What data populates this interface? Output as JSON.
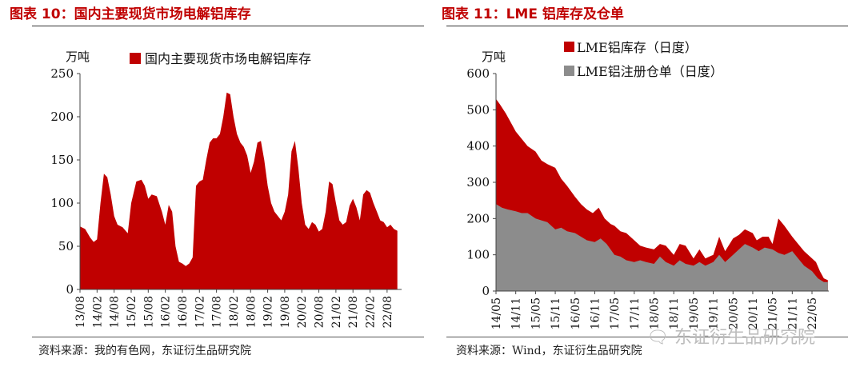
{
  "charts": {
    "left": {
      "title": "图表 10：国内主要现货市场电解铝库存",
      "source": "资料来源：我的有色网，东证衍生品研究院",
      "accent": "#c00000"
    },
    "right": {
      "title": "图表 11：LME 铝库存及仓单",
      "source": "资料来源：Wind，东证衍生品研究院",
      "accent": "#c00000",
      "secondary": "#8c8c8c"
    }
  },
  "watermark": {
    "icon": "wechat-icon",
    "text": "东证衍生品研究院"
  },
  "chart_data": [
    {
      "type": "area",
      "title": "国内主要现货市场电解铝库存",
      "ylabel": "万吨",
      "ylim": [
        0,
        250
      ],
      "yticks": [
        0,
        50,
        100,
        150,
        200,
        250
      ],
      "xtick_labels": [
        "13/08",
        "14/02",
        "14/08",
        "15/02",
        "15/08",
        "16/02",
        "16/08",
        "17/02",
        "17/08",
        "18/02",
        "18/08",
        "19/02",
        "19/08",
        "20/02",
        "20/08",
        "21/02",
        "21/08",
        "22/02",
        "22/08"
      ],
      "series": [
        {
          "name": "国内主要现货市场电解铝库存",
          "color": "#c00000",
          "x": [
            0,
            0.3,
            0.6,
            0.8,
            1.0,
            1.2,
            1.4,
            1.6,
            1.8,
            2.0,
            2.2,
            2.5,
            2.8,
            3.0,
            3.3,
            3.6,
            3.8,
            4.0,
            4.2,
            4.5,
            4.8,
            5.0,
            5.2,
            5.4,
            5.6,
            5.8,
            6.0,
            6.2,
            6.4,
            6.6,
            6.8,
            7.0,
            7.2,
            7.4,
            7.6,
            7.8,
            8.0,
            8.2,
            8.4,
            8.6,
            8.8,
            9.0,
            9.2,
            9.4,
            9.6,
            9.8,
            10.0,
            10.2,
            10.4,
            10.6,
            10.8,
            11.0,
            11.2,
            11.4,
            11.6,
            11.8,
            12.0,
            12.2,
            12.4,
            12.6,
            12.8,
            13.0,
            13.2,
            13.4,
            13.6,
            13.8,
            14.0,
            14.2,
            14.4,
            14.6,
            14.8,
            15.0,
            15.2,
            15.4,
            15.6,
            15.8,
            16.0,
            16.2,
            16.4,
            16.6,
            16.8,
            17.0,
            17.2,
            17.4,
            17.6,
            17.8,
            18.0,
            18.2,
            18.4,
            18.6
          ],
          "values": [
            73,
            70,
            60,
            55,
            58,
            100,
            134,
            130,
            110,
            85,
            75,
            72,
            65,
            100,
            125,
            127,
            120,
            105,
            110,
            108,
            90,
            75,
            98,
            90,
            50,
            32,
            30,
            27,
            30,
            37,
            120,
            125,
            127,
            150,
            170,
            175,
            175,
            180,
            200,
            228,
            226,
            200,
            180,
            170,
            165,
            155,
            135,
            148,
            170,
            172,
            150,
            120,
            100,
            90,
            85,
            80,
            90,
            110,
            160,
            172,
            140,
            100,
            75,
            70,
            78,
            75,
            67,
            70,
            90,
            125,
            122,
            100,
            80,
            75,
            78,
            97,
            105,
            95,
            80,
            110,
            115,
            112,
            100,
            90,
            80,
            78,
            72,
            75,
            70,
            68
          ]
        }
      ]
    },
    {
      "type": "area",
      "title": "LME 铝库存及仓单",
      "ylabel": "万吨",
      "ylim": [
        0,
        600
      ],
      "yticks": [
        0,
        100,
        200,
        300,
        400,
        500,
        600
      ],
      "xtick_labels": [
        "14/05",
        "14/11",
        "15/05",
        "15/11",
        "16/05",
        "16/11",
        "17/05",
        "17/11",
        "18/05",
        "18/11",
        "19/05",
        "19/11",
        "20/05",
        "20/11",
        "21/05",
        "21/11",
        "22/05"
      ],
      "series": [
        {
          "name": "LME铝库存（日度）",
          "color": "#c00000",
          "x": [
            0,
            0.2,
            0.5,
            0.8,
            1.0,
            1.3,
            1.6,
            2.0,
            2.3,
            2.6,
            3.0,
            3.3,
            3.6,
            4.0,
            4.3,
            4.6,
            4.9,
            5.2,
            5.5,
            5.8,
            6.0,
            6.3,
            6.6,
            7.0,
            7.3,
            7.6,
            8.0,
            8.3,
            8.6,
            9.0,
            9.3,
            9.6,
            10.0,
            10.3,
            10.6,
            11.0,
            11.3,
            11.6,
            12.0,
            12.3,
            12.6,
            13.0,
            13.2,
            13.5,
            13.8,
            14.0,
            14.3,
            14.6,
            15.0,
            15.3,
            15.6,
            15.9,
            16.2,
            16.4,
            16.6,
            16.8
          ],
          "values": [
            530,
            515,
            490,
            460,
            440,
            420,
            400,
            385,
            360,
            350,
            340,
            310,
            290,
            260,
            240,
            225,
            215,
            230,
            200,
            185,
            180,
            165,
            160,
            140,
            125,
            120,
            115,
            130,
            125,
            100,
            130,
            125,
            90,
            115,
            90,
            100,
            150,
            110,
            145,
            155,
            170,
            160,
            140,
            150,
            150,
            130,
            200,
            180,
            150,
            130,
            110,
            95,
            80,
            55,
            35,
            30
          ]
        },
        {
          "name": "LME铝注册仓单（日度）",
          "color": "#8c8c8c",
          "x": [
            0,
            0.3,
            0.6,
            1.0,
            1.3,
            1.6,
            2.0,
            2.3,
            2.6,
            3.0,
            3.3,
            3.6,
            4.0,
            4.3,
            4.6,
            5.0,
            5.3,
            5.6,
            6.0,
            6.3,
            6.6,
            7.0,
            7.3,
            7.6,
            8.0,
            8.3,
            8.6,
            9.0,
            9.3,
            9.6,
            10.0,
            10.3,
            10.6,
            11.0,
            11.3,
            11.6,
            12.0,
            12.3,
            12.6,
            13.0,
            13.3,
            13.6,
            14.0,
            14.3,
            14.6,
            15.0,
            15.3,
            15.6,
            16.0,
            16.3,
            16.6,
            16.8
          ],
          "values": [
            240,
            230,
            225,
            220,
            215,
            215,
            200,
            195,
            190,
            170,
            175,
            165,
            160,
            150,
            140,
            135,
            145,
            130,
            100,
            95,
            85,
            80,
            85,
            80,
            75,
            95,
            80,
            70,
            85,
            75,
            70,
            80,
            70,
            80,
            100,
            80,
            100,
            115,
            130,
            120,
            110,
            120,
            115,
            105,
            100,
            110,
            90,
            70,
            55,
            35,
            25,
            25
          ]
        }
      ]
    }
  ]
}
